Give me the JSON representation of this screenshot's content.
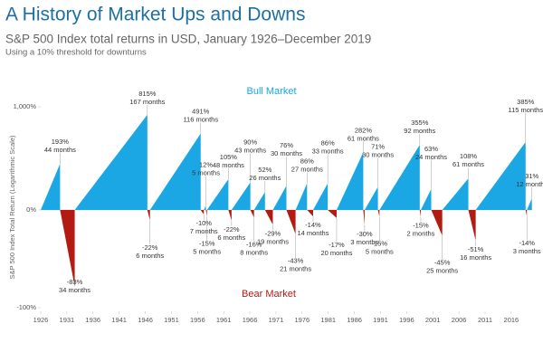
{
  "chart_data": {
    "type": "bull-bear",
    "title": "A History of Market Ups and Downs",
    "subtitle": "S&P 500 Index total returns in USD, January 1926–December 2019",
    "note": "Using a 10% threshold for downturns",
    "y_label": "S&P 500 Index Total Return (Logarithmic Scale)",
    "log_scale": true,
    "xlim": [
      1926,
      2020
    ],
    "xticks": [
      1926,
      1931,
      1936,
      1941,
      1946,
      1951,
      1956,
      1961,
      1966,
      1971,
      1976,
      1981,
      1986,
      1991,
      1996,
      2001,
      2006,
      2011,
      2016
    ],
    "ylim": [
      -100,
      1000
    ],
    "yticks": [
      {
        "value": 1000,
        "label": "1,000%"
      },
      {
        "value": 0,
        "label": "0%"
      },
      {
        "value": -100,
        "label": "-100%"
      }
    ],
    "series": [
      {
        "name": "Bull Market",
        "color": "#1aa7e4",
        "start": [
          1926,
          1932.5,
          1946.9,
          1957.2,
          1957.8,
          1962.5,
          1966.8,
          1970.4,
          1974.75,
          1978.1,
          1982.6,
          1987.95,
          1990.8,
          1998.7,
          2002.8,
          2009.2,
          2019.0
        ],
        "end": [
          1929.7,
          1946.4,
          1956.6,
          1957.6,
          1961.9,
          1966.1,
          1968.9,
          1973.0,
          1976.95,
          1980.9,
          1987.7,
          1990.5,
          1998.5,
          2000.7,
          2007.8,
          2018.75,
          2019.95
        ],
        "values": [
          193,
          815,
          491,
          12,
          105,
          90,
          52,
          76,
          86,
          86,
          282,
          71,
          355,
          63,
          108,
          385,
          31
        ],
        "value_labels": [
          "193%",
          "815%",
          "491%",
          "12%",
          "105%",
          "90%",
          "52%",
          "76%",
          "86%",
          "86%",
          "282%",
          "71%",
          "355%",
          "63%",
          "108%",
          "385%",
          "31%"
        ],
        "durations": [
          "44 months",
          "167 months",
          "116 months",
          "5 months",
          "48 months",
          "43 months",
          "26 months",
          "30 months",
          "27 months",
          "33 months",
          "61 months",
          "30 months",
          "92 months",
          "24 months",
          "61 months",
          "115 months",
          "12 months"
        ]
      },
      {
        "name": "Bear Market",
        "color": "#b31b12",
        "start": [
          1929.7,
          1946.4,
          1956.6,
          1957.6,
          1961.9,
          1966.1,
          1968.9,
          1973.0,
          1976.95,
          1980.9,
          1987.7,
          1990.5,
          1998.5,
          2000.7,
          2007.8,
          2018.75
        ],
        "end": [
          1932.5,
          1946.9,
          1957.2,
          1957.8,
          1962.5,
          1966.8,
          1970.4,
          1974.75,
          1978.1,
          1982.6,
          1987.95,
          1990.8,
          1998.7,
          2002.8,
          2009.2,
          2019.0
        ],
        "values": [
          -83,
          -22,
          -10,
          -15,
          -22,
          -16,
          -29,
          -43,
          -14,
          -17,
          -30,
          -15,
          -15,
          -45,
          -51,
          -14
        ],
        "value_labels": [
          "-83%",
          "-22%",
          "-10%",
          "-15%",
          "-22%",
          "-16%",
          "-29%",
          "-43%",
          "-14%",
          "-17%",
          "-30%",
          "-15%",
          "-15%",
          "-45%",
          "-51%",
          "-14%"
        ],
        "durations": [
          "34 months",
          "6 months",
          "7 months",
          "5 months",
          "6 months",
          "8 months",
          "19 months",
          "21 months",
          "14 months",
          "20 months",
          "3 months",
          "5 months",
          "2 months",
          "25 months",
          "16 months",
          "3 months"
        ]
      }
    ]
  }
}
